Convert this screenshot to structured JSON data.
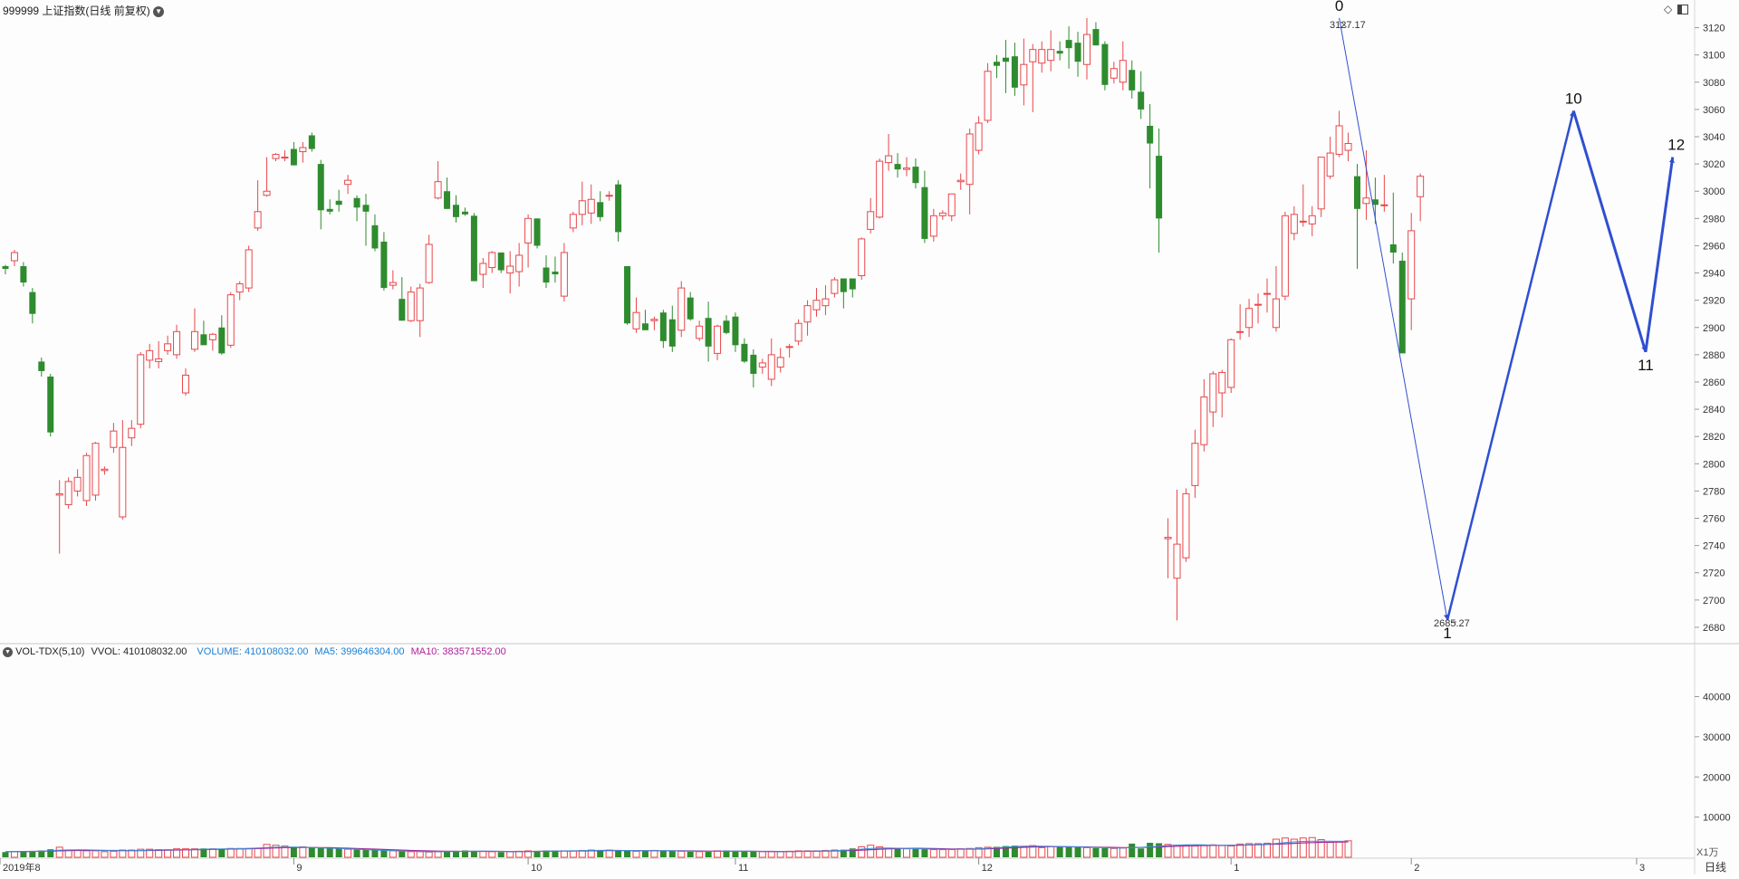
{
  "header": {
    "symbol_title": "999999 上证指数(日线 前复权)",
    "vol_indicator": "VOL-TDX(5,10)",
    "vvol": "VVOL: 410108032.00",
    "volume": "VOLUME: 410108032.00",
    "ma5": "MA5: 399646304.00",
    "ma10": "MA10: 383571552.00"
  },
  "icons": [
    "chevron-down-icon",
    "diamond-icon",
    "window-toggle-icon"
  ],
  "axis": {
    "price_ticks": [
      "2680",
      "2700",
      "2720",
      "2740",
      "2760",
      "2780",
      "2800",
      "2820",
      "2840",
      "2860",
      "2880",
      "2900",
      "2920",
      "2940",
      "2960",
      "2980",
      "3000",
      "3020",
      "3040",
      "3060",
      "3080",
      "3100",
      "3120"
    ],
    "volume_ticks": [
      "10000",
      "20000",
      "30000",
      "40000"
    ],
    "volume_unit": "X1万",
    "period_label": "日线",
    "date_labels": [
      "2019年8",
      "9",
      "10",
      "11",
      "12",
      "1",
      "2",
      "3"
    ]
  },
  "annotations": {
    "high_value": "3127.17",
    "low_value": "2685.27",
    "wave_labels": [
      "0",
      "1",
      "10",
      "11",
      "12"
    ]
  },
  "colors": {
    "up": "#e8474b",
    "down": "#2e8b2e",
    "wave_line": "#2f4fd0",
    "ma5_line": "#3a8fd8",
    "ma10_line": "#a0289a",
    "volume_value_text": "#1a7fd4",
    "ma5_text": "#1a7fd4",
    "ma10_text": "#b0209a"
  },
  "chart_data": {
    "type": "candlestick",
    "title": "999999 上证指数(日线 前复权)",
    "price_range": [
      2670,
      3135
    ],
    "volume_range": [
      0,
      48000
    ],
    "volume_unit": "10000",
    "months": [
      {
        "label": "2019年8",
        "bar_index": 0
      },
      {
        "label": "9",
        "bar_index": 32
      },
      {
        "label": "10",
        "bar_index": 58
      },
      {
        "label": "11",
        "bar_index": 81
      },
      {
        "label": "12",
        "bar_index": 108
      },
      {
        "label": "1",
        "bar_index": 136
      },
      {
        "label": "2",
        "bar_index": 156
      },
      {
        "label": "3",
        "bar_index": 181
      }
    ],
    "ohlc": [
      [
        2945,
        2946,
        2939,
        2943
      ],
      [
        2949,
        2957,
        2945,
        2955
      ],
      [
        2945,
        2948,
        2930,
        2933
      ],
      [
        2926,
        2929,
        2903,
        2910
      ],
      [
        2875,
        2878,
        2864,
        2868
      ],
      [
        2864,
        2866,
        2820,
        2823
      ],
      [
        2777,
        2788,
        2734,
        2778
      ],
      [
        2770,
        2790,
        2767,
        2787
      ],
      [
        2780,
        2796,
        2776,
        2790
      ],
      [
        2773,
        2808,
        2769,
        2806
      ],
      [
        2777,
        2816,
        2773,
        2815
      ],
      [
        2795,
        2798,
        2792,
        2796
      ],
      [
        2812,
        2830,
        2808,
        2824
      ],
      [
        2761,
        2832,
        2759,
        2812
      ],
      [
        2819,
        2832,
        2813,
        2826
      ],
      [
        2829,
        2882,
        2826,
        2880
      ],
      [
        2876,
        2888,
        2870,
        2883
      ],
      [
        2875,
        2890,
        2870,
        2877
      ],
      [
        2883,
        2894,
        2880,
        2888
      ],
      [
        2880,
        2902,
        2877,
        2897
      ],
      [
        2852,
        2870,
        2850,
        2865
      ],
      [
        2884,
        2914,
        2882,
        2897
      ],
      [
        2895,
        2905,
        2888,
        2887
      ],
      [
        2891,
        2896,
        2883,
        2895
      ],
      [
        2900,
        2909,
        2880,
        2881
      ],
      [
        2887,
        2926,
        2885,
        2924
      ],
      [
        2926,
        2934,
        2920,
        2932
      ],
      [
        2929,
        2960,
        2926,
        2957
      ],
      [
        2973,
        3008,
        2971,
        2985
      ],
      [
        2997,
        3025,
        2996,
        3000
      ],
      [
        3024,
        3028,
        3022,
        3027
      ],
      [
        3025,
        3030,
        3022,
        3025
      ],
      [
        3031,
        3036,
        3019,
        3019
      ],
      [
        3029,
        3036,
        3021,
        3032
      ],
      [
        3041,
        3043,
        3029,
        3031
      ],
      [
        3020,
        3023,
        2972,
        2986
      ],
      [
        2987,
        2994,
        2983,
        2985
      ],
      [
        2993,
        3001,
        2985,
        2990
      ],
      [
        3005,
        3012,
        2998,
        3008
      ],
      [
        2995,
        2997,
        2978,
        2988
      ],
      [
        2990,
        2998,
        2960,
        2985
      ],
      [
        2975,
        2983,
        2956,
        2958
      ],
      [
        2963,
        2970,
        2927,
        2929
      ],
      [
        2931,
        2942,
        2928,
        2933
      ],
      [
        2921,
        2937,
        2905,
        2905
      ],
      [
        2905,
        2930,
        2904,
        2926
      ],
      [
        2905,
        2932,
        2893,
        2929
      ],
      [
        2933,
        2968,
        2932,
        2961
      ],
      [
        2995,
        3022,
        2994,
        3007
      ],
      [
        3000,
        3010,
        2987,
        2987
      ],
      [
        2990,
        2997,
        2977,
        2981
      ],
      [
        2985,
        2988,
        2982,
        2983
      ],
      [
        2982,
        2984,
        2934,
        2934
      ],
      [
        2939,
        2951,
        2929,
        2947
      ],
      [
        2944,
        2956,
        2940,
        2955
      ],
      [
        2955,
        2955,
        2940,
        2942
      ],
      [
        2940,
        2956,
        2925,
        2945
      ],
      [
        2941,
        2962,
        2930,
        2953
      ],
      [
        2962,
        2983,
        2944,
        2980
      ],
      [
        2980,
        2980,
        2958,
        2960
      ],
      [
        2944,
        2953,
        2929,
        2933
      ],
      [
        2941,
        2952,
        2933,
        2939
      ],
      [
        2923,
        2962,
        2919,
        2955
      ],
      [
        2973,
        2985,
        2970,
        2983
      ],
      [
        2983,
        3007,
        2975,
        2993
      ],
      [
        2984,
        3005,
        2976,
        2994
      ],
      [
        2992,
        3000,
        2978,
        2981
      ],
      [
        2997,
        3000,
        2993,
        2997
      ],
      [
        3005,
        3008,
        2963,
        2970
      ],
      [
        2945,
        2945,
        2902,
        2903
      ],
      [
        2899,
        2922,
        2896,
        2911
      ],
      [
        2903,
        2913,
        2899,
        2898
      ],
      [
        2905,
        2908,
        2898,
        2906
      ],
      [
        2911,
        2913,
        2885,
        2890
      ],
      [
        2906,
        2916,
        2882,
        2886
      ],
      [
        2898,
        2934,
        2893,
        2929
      ],
      [
        2922,
        2926,
        2905,
        2906
      ],
      [
        2892,
        2905,
        2890,
        2901
      ],
      [
        2907,
        2919,
        2875,
        2886
      ],
      [
        2881,
        2902,
        2876,
        2901
      ],
      [
        2905,
        2909,
        2895,
        2896
      ],
      [
        2908,
        2911,
        2882,
        2887
      ],
      [
        2888,
        2892,
        2874,
        2875
      ],
      [
        2880,
        2884,
        2856,
        2866
      ],
      [
        2871,
        2877,
        2866,
        2874
      ],
      [
        2862,
        2892,
        2857,
        2880
      ],
      [
        2871,
        2885,
        2867,
        2878
      ],
      [
        2886,
        2888,
        2878,
        2886
      ],
      [
        2890,
        2906,
        2887,
        2903
      ],
      [
        2904,
        2920,
        2894,
        2916
      ],
      [
        2913,
        2929,
        2908,
        2920
      ],
      [
        2916,
        2931,
        2909,
        2921
      ],
      [
        2925,
        2937,
        2922,
        2935
      ],
      [
        2936,
        2932,
        2914,
        2926
      ],
      [
        2936,
        2935,
        2922,
        2928
      ],
      [
        2938,
        2966,
        2935,
        2965
      ],
      [
        2972,
        2995,
        2969,
        2985
      ],
      [
        2981,
        3024,
        2980,
        3022
      ],
      [
        3021,
        3042,
        3015,
        3026
      ],
      [
        3020,
        3028,
        3010,
        3016
      ],
      [
        3016,
        3025,
        3011,
        3017
      ],
      [
        3018,
        3024,
        3002,
        3006
      ],
      [
        3003,
        3015,
        2962,
        2965
      ],
      [
        2967,
        2987,
        2963,
        2982
      ],
      [
        2982,
        2986,
        2979,
        2984
      ],
      [
        2982,
        2996,
        2978,
        2998
      ],
      [
        3007,
        3013,
        3001,
        3008
      ],
      [
        3005,
        3046,
        2983,
        3042
      ],
      [
        3030,
        3055,
        3027,
        3050
      ],
      [
        3052,
        3094,
        3050,
        3088
      ],
      [
        3095,
        3100,
        3083,
        3092
      ],
      [
        3098,
        3111,
        3072,
        3095
      ],
      [
        3099,
        3109,
        3070,
        3076
      ],
      [
        3078,
        3112,
        3063,
        3093
      ],
      [
        3095,
        3108,
        3058,
        3104
      ],
      [
        3094,
        3110,
        3087,
        3104
      ],
      [
        3096,
        3118,
        3088,
        3104
      ],
      [
        3103,
        3110,
        3096,
        3101
      ],
      [
        3111,
        3121,
        3090,
        3105
      ],
      [
        3109,
        3117,
        3084,
        3095
      ],
      [
        3093,
        3127,
        3082,
        3115
      ],
      [
        3119,
        3124,
        3107,
        3107
      ],
      [
        3108,
        3110,
        3074,
        3078
      ],
      [
        3083,
        3095,
        3079,
        3090
      ],
      [
        3080,
        3110,
        3074,
        3096
      ],
      [
        3089,
        3096,
        3068,
        3074
      ],
      [
        3073,
        3088,
        3053,
        3060
      ],
      [
        3048,
        3064,
        3002,
        3035
      ],
      [
        3026,
        3046,
        2955,
        2980
      ],
      [
        2745,
        2760,
        2716,
        2746
      ],
      [
        2716,
        2781,
        2685,
        2741
      ],
      [
        2731,
        2782,
        2728,
        2778
      ],
      [
        2784,
        2825,
        2775,
        2815
      ],
      [
        2814,
        2862,
        2809,
        2849
      ],
      [
        2838,
        2868,
        2827,
        2866
      ],
      [
        2852,
        2869,
        2834,
        2867
      ],
      [
        2856,
        2892,
        2852,
        2891
      ],
      [
        2897,
        2917,
        2891,
        2897
      ],
      [
        2900,
        2921,
        2893,
        2914
      ],
      [
        2917,
        2925,
        2903,
        2917
      ],
      [
        2925,
        2936,
        2911,
        2925
      ],
      [
        2900,
        2945,
        2897,
        2921
      ],
      [
        2923,
        2985,
        2920,
        2982
      ],
      [
        2969,
        2989,
        2964,
        2983
      ],
      [
        2978,
        3005,
        2974,
        2978
      ],
      [
        2976,
        2989,
        2967,
        2982
      ],
      [
        2987,
        3021,
        2981,
        3025
      ],
      [
        3011,
        3040,
        3009,
        3028
      ],
      [
        3027,
        3059,
        3025,
        3048
      ],
      [
        3030,
        3043,
        3022,
        3035
      ],
      [
        3011,
        3020,
        2943,
        2987
      ],
      [
        2991,
        3030,
        2979,
        2995
      ],
      [
        2994,
        3010,
        2976,
        2990
      ],
      [
        2990,
        3012,
        2985,
        2990
      ],
      [
        2961,
        2999,
        2947,
        2955
      ],
      [
        2949,
        2955,
        2882,
        2881
      ],
      [
        2921,
        2984,
        2898,
        2971
      ],
      [
        2996,
        3013,
        2978,
        3011
      ]
    ],
    "volume": [
      1300,
      1400,
      1500,
      1500,
      1700,
      2000,
      2500,
      1700,
      1700,
      1600,
      1600,
      1400,
      1500,
      1800,
      1800,
      2000,
      2000,
      1900,
      1900,
      2100,
      2100,
      2100,
      2200,
      2100,
      2100,
      2200,
      2200,
      2200,
      2200,
      3200,
      3000,
      2800,
      2600,
      2600,
      2400,
      2300,
      2300,
      2200,
      2000,
      1900,
      1900,
      1800,
      1700,
      1600,
      1500,
      1400,
      1400,
      1300,
      1400,
      1400,
      1500,
      1700,
      1600,
      1500,
      1400,
      1300,
      1400,
      1500,
      1600,
      1600,
      1700,
      1700,
      1600,
      1600,
      1700,
      1800,
      1800,
      1800,
      1700,
      1600,
      1500,
      1600,
      1700,
      1700,
      1600,
      1500,
      1400,
      1400,
      1500,
      1600,
      1700,
      1600,
      1500,
      1400,
      1400,
      1400,
      1400,
      1500,
      1600,
      1600,
      1600,
      1700,
      1800,
      1900,
      2200,
      2600,
      3000,
      2600,
      2100,
      2200,
      2100,
      2100,
      2000,
      1900,
      1900,
      1900,
      2100,
      2200,
      2400,
      2500,
      2600,
      2800,
      2900,
      2600,
      2900,
      2400,
      2700,
      2600,
      2600,
      2500,
      2400,
      2300,
      2300,
      2200,
      2300,
      3400,
      2200,
      3600,
      3500,
      3200,
      3000,
      3000,
      2800,
      2900,
      3100,
      2900,
      2800,
      3300,
      3400,
      3400,
      3500,
      4500,
      4800,
      4500,
      4800,
      4900,
      4400,
      3700,
      3800,
      4100
    ],
    "ma5": [
      1350,
      1380,
      1420,
      1440,
      1520,
      1620,
      1780,
      1820,
      1880,
      1860,
      1780,
      1720,
      1640,
      1620,
      1640,
      1700,
      1740,
      1820,
      1880,
      1900,
      1920,
      1960,
      2000,
      2040,
      2080,
      2100,
      2140,
      2200,
      2300,
      2420,
      2500,
      2520,
      2540,
      2500,
      2420,
      2340,
      2260,
      2180,
      2100,
      2000,
      1900,
      1800,
      1700,
      1620,
      1540,
      1480,
      1420,
      1380,
      1380,
      1400,
      1420,
      1460,
      1500,
      1520,
      1500,
      1460,
      1420,
      1400,
      1420,
      1460,
      1520,
      1560,
      1580,
      1600,
      1640,
      1680,
      1720,
      1740,
      1720,
      1680,
      1640,
      1620,
      1620,
      1620,
      1600,
      1560,
      1520,
      1480,
      1460,
      1480,
      1520,
      1540,
      1520,
      1480,
      1440,
      1420,
      1400,
      1420,
      1460,
      1500,
      1540,
      1580,
      1640,
      1720,
      1840,
      2020,
      2180,
      2280,
      2300,
      2260,
      2200,
      2140,
      2080,
      2020,
      1980,
      1960,
      1980,
      2040,
      2120,
      2220,
      2360,
      2520,
      2700,
      2780,
      2820,
      2760,
      2720,
      2680,
      2620,
      2560,
      2500,
      2440,
      2380,
      2320,
      2300,
      2420,
      2480,
      2600,
      2740,
      2900,
      3040,
      3120,
      3140,
      3080,
      3000,
      2960,
      2940,
      2980,
      3060,
      3180,
      3300,
      3440,
      3640,
      3820,
      3940,
      3980,
      4000,
      3980,
      3960,
      4010
    ],
    "ma10": [
      1400,
      1420,
      1440,
      1460,
      1500,
      1540,
      1600,
      1660,
      1700,
      1720,
      1720,
      1700,
      1680,
      1660,
      1650,
      1660,
      1680,
      1720,
      1760,
      1800,
      1840,
      1880,
      1920,
      1960,
      2000,
      2040,
      2080,
      2120,
      2180,
      2260,
      2320,
      2380,
      2420,
      2440,
      2440,
      2420,
      2380,
      2320,
      2260,
      2180,
      2100,
      2020,
      1940,
      1860,
      1780,
      1700,
      1640,
      1580,
      1540,
      1500,
      1480,
      1470,
      1470,
      1470,
      1470,
      1460,
      1450,
      1440,
      1450,
      1470,
      1490,
      1510,
      1530,
      1550,
      1570,
      1600,
      1630,
      1650,
      1660,
      1660,
      1650,
      1640,
      1630,
      1620,
      1610,
      1590,
      1570,
      1550,
      1530,
      1520,
      1510,
      1510,
      1500,
      1490,
      1470,
      1460,
      1450,
      1450,
      1460,
      1480,
      1500,
      1530,
      1570,
      1620,
      1690,
      1780,
      1890,
      2000,
      2100,
      2170,
      2210,
      2220,
      2200,
      2160,
      2110,
      2070,
      2040,
      2030,
      2060,
      2110,
      2180,
      2270,
      2380,
      2490,
      2580,
      2620,
      2640,
      2640,
      2620,
      2590,
      2560,
      2530,
      2490,
      2450,
      2420,
      2430,
      2450,
      2510,
      2570,
      2650,
      2740,
      2820,
      2890,
      2940,
      2960,
      2980,
      3000,
      3020,
      3060,
      3120,
      3190,
      3270,
      3360,
      3470,
      3580,
      3660,
      3720,
      3760,
      3790,
      3840
    ],
    "wave_points": [
      {
        "label": "0",
        "bar_index": 148,
        "price": 3127.17
      },
      {
        "label": "1",
        "bar_index": 160,
        "price": 2685.27
      },
      {
        "label": "10",
        "bar_index": 174,
        "price": 3059
      },
      {
        "label": "11",
        "bar_index": 182,
        "price": 2882
      },
      {
        "label": "12",
        "bar_index": 185,
        "price": 3025
      }
    ]
  }
}
